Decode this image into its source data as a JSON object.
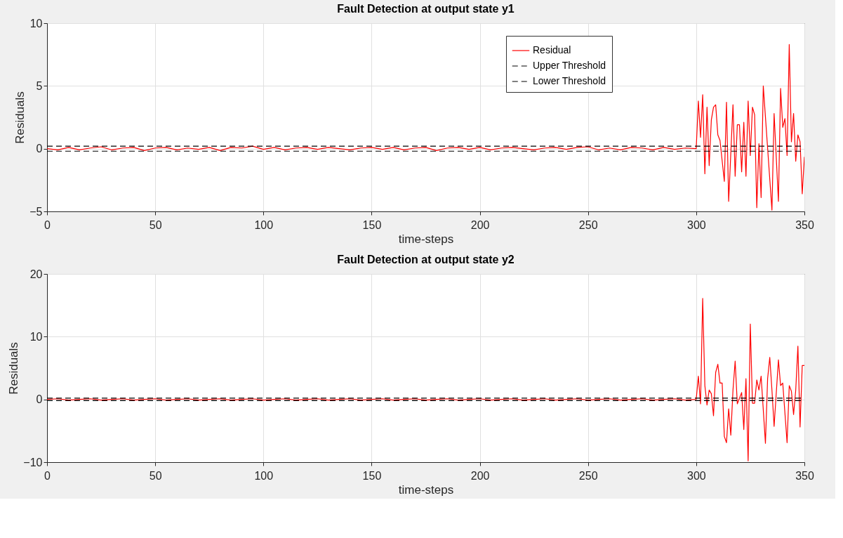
{
  "chart_data": [
    {
      "type": "line",
      "title": "Fault Detection at output state y1",
      "xlabel": "time-steps",
      "ylabel": "Residuals",
      "xlim": [
        0,
        350
      ],
      "xticks": [
        0,
        50,
        100,
        150,
        200,
        250,
        300,
        350
      ],
      "ylim": [
        -5,
        10
      ],
      "yticks": [
        -5,
        0,
        5,
        10
      ],
      "grid": true,
      "legend": "top right",
      "marker": "none",
      "series": [
        {
          "name": "Residual",
          "color": "#ff0000",
          "line_style": "solid",
          "x": [
            0,
            5,
            10,
            15,
            20,
            25,
            30,
            35,
            40,
            45,
            50,
            55,
            60,
            65,
            70,
            75,
            80,
            85,
            90,
            95,
            100,
            105,
            110,
            115,
            120,
            125,
            130,
            135,
            140,
            145,
            150,
            155,
            160,
            165,
            170,
            175,
            180,
            185,
            190,
            195,
            200,
            205,
            210,
            215,
            220,
            225,
            230,
            235,
            240,
            245,
            250,
            255,
            260,
            265,
            270,
            275,
            280,
            285,
            290,
            295,
            300,
            301,
            302,
            303,
            304,
            305,
            306,
            307,
            308,
            309,
            310,
            311,
            313,
            314,
            315,
            317,
            318,
            319,
            320,
            321,
            322,
            323,
            324,
            325,
            326,
            327,
            328,
            329,
            330,
            331,
            335,
            336,
            338,
            339,
            340,
            341,
            342,
            343,
            344,
            345,
            346,
            347,
            348,
            349,
            350
          ],
          "values": [
            0.0,
            -0.1,
            0.1,
            -0.1,
            0.05,
            0.15,
            -0.1,
            0.05,
            0.1,
            -0.15,
            0.05,
            0.1,
            -0.1,
            0.05,
            -0.05,
            0.1,
            -0.15,
            0.1,
            0.05,
            0.2,
            -0.05,
            0.1,
            -0.1,
            0.05,
            0.1,
            -0.05,
            0.1,
            0.0,
            -0.1,
            0.05,
            0.1,
            -0.05,
            0.1,
            -0.1,
            0.05,
            0.1,
            -0.15,
            0.05,
            0.1,
            -0.05,
            0.1,
            -0.1,
            0.05,
            0.1,
            0.0,
            -0.1,
            0.05,
            0.1,
            -0.05,
            0.1,
            0.15,
            -0.1,
            0.05,
            -0.1,
            0.1,
            0.05,
            -0.1,
            0.1,
            -0.05,
            0.05,
            0.0,
            3.8,
            0.9,
            4.3,
            -2.0,
            3.3,
            -1.35,
            2.3,
            3.3,
            3.5,
            1.1,
            0.65,
            -2.6,
            3.7,
            -4.2,
            3.5,
            -2.2,
            1.9,
            1.9,
            -1.85,
            2.1,
            -2.2,
            3.8,
            -0.55,
            3.3,
            2.7,
            -4.7,
            0.4,
            -3.9,
            5.0,
            -4.9,
            2.8,
            -4.2,
            4.8,
            1.7,
            2.4,
            -0.55,
            8.3,
            0.55,
            2.8,
            -1.0,
            1.1,
            0.55,
            -3.6,
            -0.65
          ]
        },
        {
          "name": "Upper Threshold",
          "color": "#000000",
          "line_style": "dashed",
          "x": [
            0,
            350
          ],
          "values": [
            0.2,
            0.2
          ]
        },
        {
          "name": "Lower Threshold",
          "color": "#000000",
          "line_style": "dashed",
          "x": [
            0,
            350
          ],
          "values": [
            -0.2,
            -0.2
          ]
        }
      ]
    },
    {
      "type": "line",
      "title": "Fault Detection at output state y2",
      "xlabel": "time-steps",
      "ylabel": "Residuals",
      "xlim": [
        0,
        350
      ],
      "xticks": [
        0,
        50,
        100,
        150,
        200,
        250,
        300,
        350
      ],
      "ylim": [
        -10,
        20
      ],
      "yticks": [
        -10,
        0,
        10,
        20
      ],
      "grid": true,
      "legend": "top right",
      "marker": "none",
      "series": [
        {
          "name": "Residual",
          "color": "#ff0000",
          "line_style": "solid",
          "x": [
            0,
            5,
            10,
            15,
            20,
            25,
            30,
            35,
            40,
            45,
            50,
            55,
            60,
            65,
            70,
            75,
            80,
            85,
            90,
            95,
            100,
            105,
            110,
            115,
            120,
            125,
            130,
            135,
            140,
            145,
            150,
            155,
            160,
            165,
            170,
            175,
            180,
            185,
            190,
            195,
            200,
            205,
            210,
            215,
            220,
            225,
            230,
            235,
            240,
            245,
            250,
            255,
            260,
            265,
            270,
            275,
            280,
            285,
            290,
            295,
            300,
            301,
            302,
            303,
            304,
            305,
            306,
            307,
            308,
            309,
            310,
            311,
            312,
            313,
            314,
            315,
            316,
            317,
            318,
            319,
            321,
            322,
            323,
            324,
            325,
            326,
            327,
            328,
            329,
            330,
            332,
            333,
            334,
            335,
            336,
            338,
            339,
            340,
            342,
            343,
            344,
            345,
            346,
            347,
            348,
            349,
            350
          ],
          "values": [
            0.0,
            0.1,
            -0.1,
            0.0,
            0.1,
            -0.1,
            0.0,
            0.1,
            -0.1,
            0.0,
            0.1,
            -0.1,
            0.0,
            0.1,
            -0.1,
            0.0,
            0.1,
            -0.1,
            0.0,
            0.1,
            -0.1,
            0.0,
            0.1,
            -0.1,
            0.0,
            0.1,
            -0.1,
            0.0,
            0.1,
            -0.1,
            0.0,
            0.1,
            -0.1,
            0.0,
            0.1,
            -0.1,
            0.0,
            0.1,
            -0.1,
            0.0,
            0.1,
            -0.1,
            0.0,
            0.1,
            -0.1,
            0.0,
            0.1,
            -0.1,
            0.0,
            0.1,
            -0.1,
            0.0,
            0.1,
            -0.1,
            0.0,
            0.1,
            -0.1,
            0.0,
            0.1,
            -0.1,
            0.0,
            3.7,
            -0.7,
            16.1,
            2.2,
            -0.9,
            1.5,
            0.9,
            -2.6,
            4.3,
            5.6,
            2.6,
            2.6,
            -5.9,
            -6.9,
            -1.5,
            -5.7,
            1.5,
            6.1,
            -0.7,
            1.1,
            -4.8,
            3.3,
            -9.8,
            12.0,
            -0.6,
            -0.6,
            3.1,
            1.5,
            3.7,
            -7.0,
            3.3,
            6.7,
            1.5,
            -4.3,
            6.3,
            2.2,
            2.6,
            -6.9,
            2.2,
            1.3,
            -2.4,
            1.5,
            8.5,
            -4.4,
            5.4,
            5.4
          ]
        },
        {
          "name": "Upper Threshold",
          "color": "#000000",
          "line_style": "dashed",
          "x": [
            0,
            350
          ],
          "values": [
            0.2,
            0.2
          ]
        },
        {
          "name": "Lower Threshold",
          "color": "#000000",
          "line_style": "dashed",
          "x": [
            0,
            350
          ],
          "values": [
            -0.2,
            -0.2
          ]
        }
      ]
    }
  ]
}
